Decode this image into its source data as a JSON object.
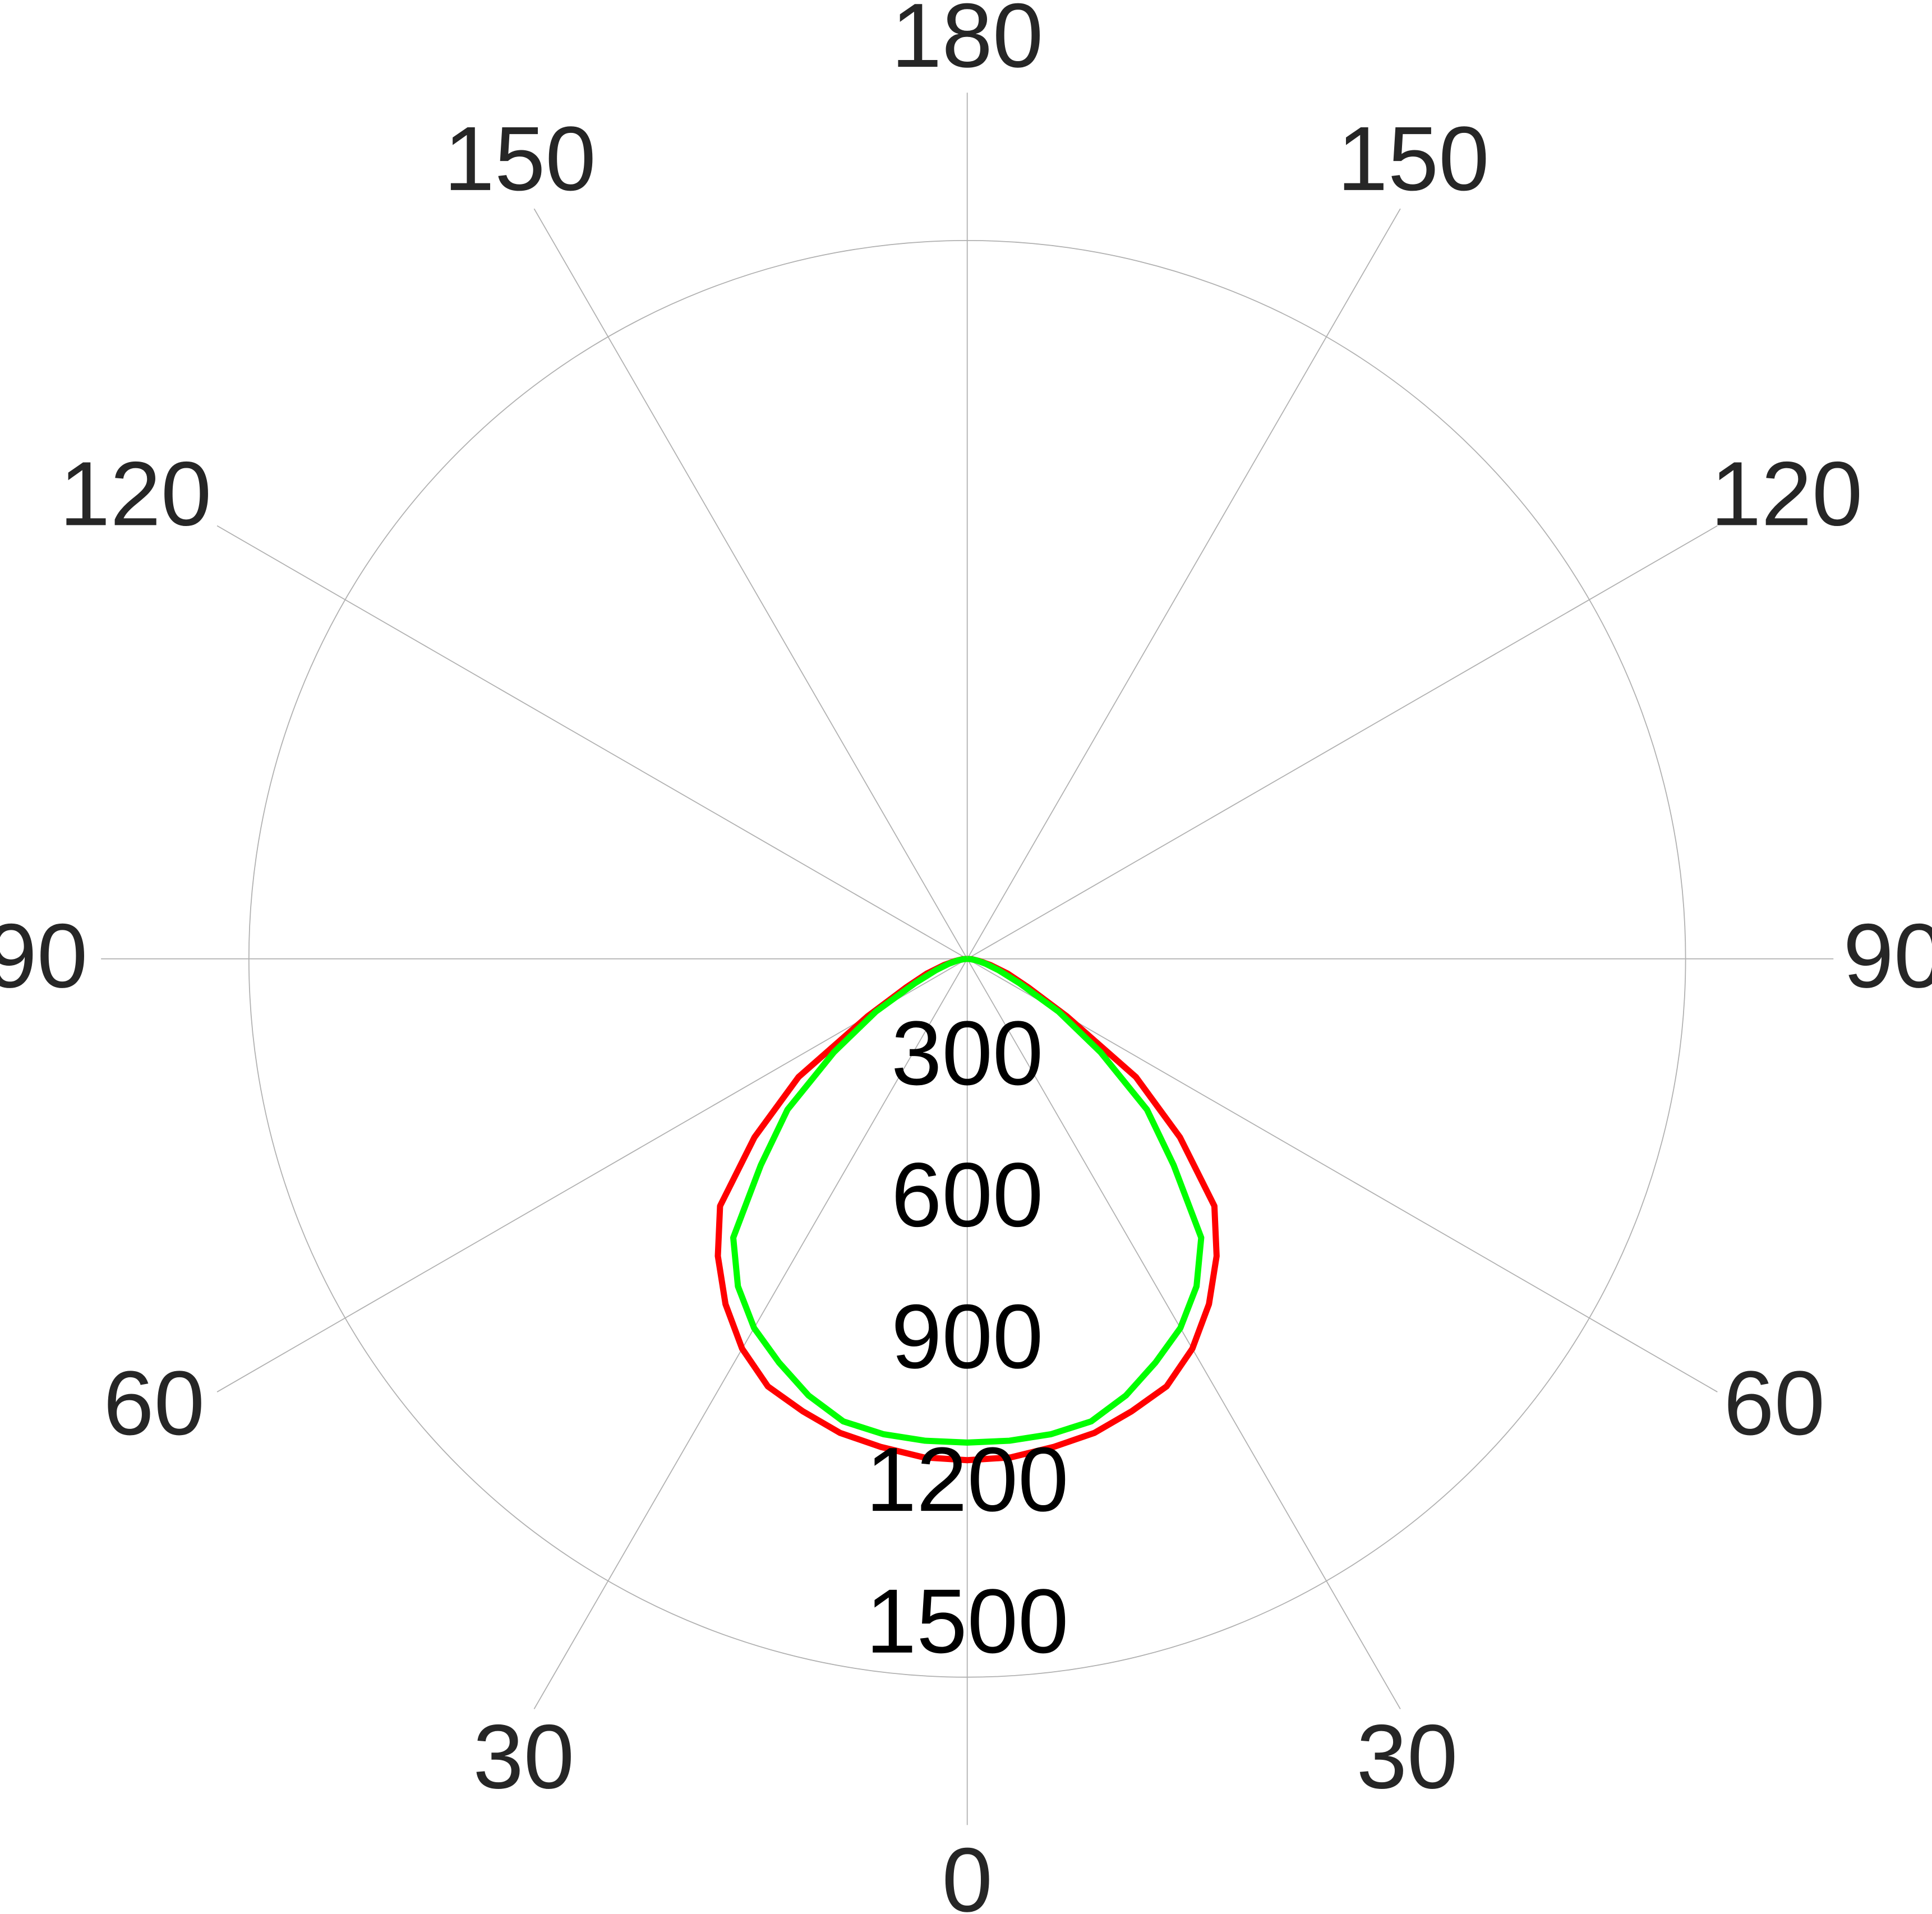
{
  "chart_data": {
    "type": "polar-line",
    "title": "",
    "angle_unit": "degrees",
    "angle_zero": "bottom",
    "angle_tick_labels": {
      "top": "180",
      "left": [
        "150",
        "120",
        "90",
        "60",
        "30"
      ],
      "right": [
        "150",
        "120",
        "90",
        "60",
        "30"
      ],
      "bottom": "0"
    },
    "radial_ticks": [
      300,
      600,
      900,
      1200,
      1500
    ],
    "radial_max": 1500,
    "grid": true,
    "colors": {
      "grid": "#b0b0b0",
      "angle_labels": "#262626",
      "radial_labels": "#000000"
    },
    "series": [
      {
        "color": "#ff0000",
        "angles": [
          0,
          5,
          10,
          15,
          20,
          25,
          30,
          35,
          40,
          45,
          50,
          55,
          60,
          65,
          70,
          75,
          80,
          85,
          90
        ],
        "values": [
          1047,
          1045,
          1035,
          1025,
          1005,
          985,
          940,
          880,
          810,
          730,
          580,
          430,
          240,
          140,
          90,
          50,
          25,
          10,
          0
        ]
      },
      {
        "color": "#00ff00",
        "angles": [
          0,
          5,
          10,
          15,
          20,
          25,
          30,
          35,
          40,
          45,
          50,
          55,
          60,
          65,
          70,
          75,
          80,
          85,
          90
        ],
        "values": [
          1010,
          1010,
          1008,
          1000,
          970,
          930,
          890,
          835,
          760,
          610,
          490,
          340,
          220,
          120,
          70,
          40,
          20,
          8,
          0
        ]
      }
    ]
  }
}
